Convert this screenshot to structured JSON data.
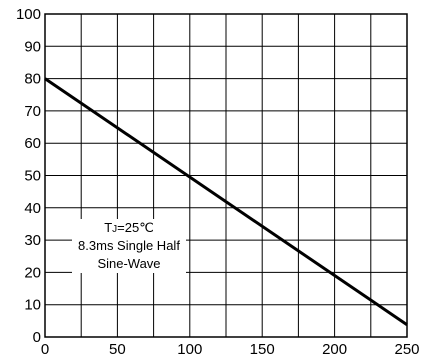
{
  "chart_data": {
    "type": "line",
    "title": "",
    "xlabel": "",
    "ylabel": "",
    "xlim": [
      0,
      250
    ],
    "ylim": [
      0,
      100
    ],
    "x_ticks": [
      0,
      50,
      100,
      150,
      200,
      250
    ],
    "y_ticks": [
      0,
      10,
      20,
      30,
      40,
      50,
      60,
      70,
      80,
      90,
      100
    ],
    "grid": true,
    "series": [
      {
        "x": [
          0,
          250
        ],
        "y": [
          80,
          3.8
        ]
      }
    ],
    "annotation": {
      "line1": "TJ=25℃",
      "line1_prefix": "T",
      "line1_sub": "J",
      "line1_rest": "=25℃",
      "line2": "8.3ms Single Half",
      "line3": "Sine-Wave"
    },
    "colors": {
      "line": "#000000",
      "grid": "#000000",
      "background": "#ffffff"
    }
  }
}
